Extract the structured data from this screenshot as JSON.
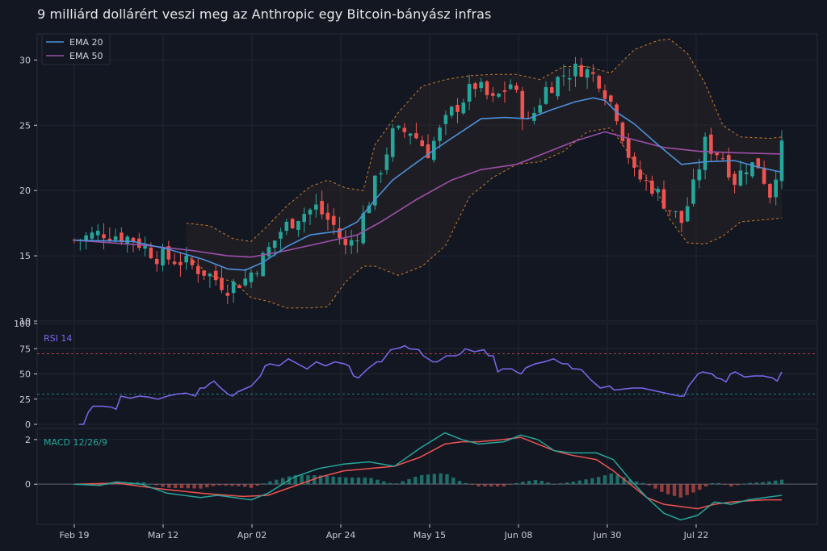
{
  "title": "9 milliárd dollárért veszi meg az Anthropic egy Bitcoin-bányász infras",
  "colors": {
    "background": "#131722",
    "up": "#26a69a",
    "down": "#ef5350",
    "ema20": "#4a90d9",
    "ema50": "#9c4fa8",
    "rsi": "#7b68ee",
    "macd": "#26a69a",
    "signal": "#ef5350",
    "bands": "#c87f2a"
  },
  "chart_data": [
    {
      "type": "candlestick",
      "legend": [
        {
          "key": "ema20",
          "label": "EMA 20"
        },
        {
          "key": "ema50",
          "label": "EMA 50"
        }
      ],
      "legend_position": "top-left",
      "ylim": [
        10,
        32
      ],
      "yticks": [
        10,
        15,
        20,
        25,
        30
      ],
      "grid": true,
      "x_ticks": [
        "Feb 19",
        "Mar 12",
        "Apr 02",
        "Apr 24",
        "May 15",
        "Jun 08",
        "Jun 30",
        "Jul 22"
      ],
      "close_anchors": [
        [
          0,
          16.2
        ],
        [
          5,
          16.8
        ],
        [
          10,
          16.3
        ],
        [
          14,
          15.0
        ],
        [
          18,
          14.6
        ],
        [
          22,
          13.8
        ],
        [
          26,
          12.6
        ],
        [
          29,
          13.2
        ],
        [
          32,
          14.8
        ],
        [
          35,
          16.9
        ],
        [
          38,
          18.1
        ],
        [
          41,
          18.7
        ],
        [
          44,
          17.3
        ],
        [
          46,
          15.6
        ],
        [
          48,
          16.8
        ],
        [
          51,
          20.5
        ],
        [
          54,
          24.3
        ],
        [
          57,
          24.6
        ],
        [
          60,
          23.0
        ],
        [
          64,
          26.0
        ],
        [
          68,
          28.1
        ],
        [
          71,
          26.8
        ],
        [
          74,
          28.2
        ],
        [
          77,
          25.1
        ],
        [
          80,
          27.8
        ],
        [
          83,
          28.9
        ],
        [
          86,
          29.4
        ],
        [
          89,
          28.5
        ],
        [
          92,
          25.9
        ],
        [
          95,
          21.2
        ],
        [
          98,
          20.3
        ],
        [
          101,
          18.6
        ],
        [
          103,
          17.6
        ],
        [
          105,
          20.2
        ],
        [
          107,
          23.6
        ],
        [
          110,
          22.6
        ],
        [
          112,
          20.8
        ],
        [
          114,
          21.9
        ],
        [
          116,
          22.0
        ],
        [
          118,
          19.8
        ],
        [
          120,
          23.2
        ]
      ],
      "ema20": [
        [
          0,
          16.2
        ],
        [
          10,
          16.1
        ],
        [
          16,
          15.5
        ],
        [
          22,
          14.7
        ],
        [
          26,
          14.0
        ],
        [
          29,
          13.9
        ],
        [
          32,
          14.5
        ],
        [
          36,
          15.7
        ],
        [
          40,
          16.6
        ],
        [
          45,
          16.9
        ],
        [
          48,
          17.6
        ],
        [
          51,
          19.3
        ],
        [
          54,
          20.8
        ],
        [
          57,
          21.8
        ],
        [
          61,
          23.1
        ],
        [
          65,
          24.3
        ],
        [
          69,
          25.5
        ],
        [
          73,
          25.6
        ],
        [
          77,
          25.5
        ],
        [
          81,
          26.2
        ],
        [
          85,
          26.8
        ],
        [
          88,
          27.1
        ],
        [
          90,
          26.9
        ],
        [
          92,
          26.0
        ],
        [
          95,
          25.1
        ],
        [
          99,
          23.5
        ],
        [
          103,
          22.0
        ],
        [
          107,
          22.2
        ],
        [
          112,
          22.3
        ],
        [
          116,
          21.8
        ],
        [
          120,
          21.4
        ]
      ],
      "ema50": [
        [
          0,
          16.2
        ],
        [
          12,
          15.8
        ],
        [
          20,
          15.4
        ],
        [
          26,
          15.0
        ],
        [
          30,
          14.9
        ],
        [
          36,
          15.4
        ],
        [
          42,
          16.0
        ],
        [
          48,
          16.6
        ],
        [
          52,
          17.6
        ],
        [
          58,
          19.3
        ],
        [
          64,
          20.8
        ],
        [
          69,
          21.6
        ],
        [
          75,
          22.0
        ],
        [
          80,
          22.9
        ],
        [
          85,
          23.8
        ],
        [
          90,
          24.5
        ],
        [
          94,
          24.0
        ],
        [
          100,
          23.3
        ],
        [
          106,
          23.0
        ],
        [
          112,
          22.9
        ],
        [
          120,
          22.8
        ]
      ],
      "bb_upper": [
        [
          19,
          17.5
        ],
        [
          23,
          17.3
        ],
        [
          27,
          16.3
        ],
        [
          30,
          16.1
        ],
        [
          33,
          17.4
        ],
        [
          36,
          18.8
        ],
        [
          40,
          20.3
        ],
        [
          43,
          20.8
        ],
        [
          46,
          20.2
        ],
        [
          49,
          20.0
        ],
        [
          51,
          23.5
        ],
        [
          55,
          26.0
        ],
        [
          59,
          28.0
        ],
        [
          63,
          28.5
        ],
        [
          67,
          28.8
        ],
        [
          71,
          28.9
        ],
        [
          75,
          28.9
        ],
        [
          79,
          28.5
        ],
        [
          83,
          29.5
        ],
        [
          87,
          29.5
        ],
        [
          91,
          29.0
        ],
        [
          95,
          30.8
        ],
        [
          99,
          31.5
        ],
        [
          101,
          31.6
        ],
        [
          104,
          30.5
        ],
        [
          107,
          28.2
        ],
        [
          110,
          25.0
        ],
        [
          113,
          24.1
        ],
        [
          118,
          24.0
        ],
        [
          120,
          24.1
        ]
      ],
      "bb_lower": [
        [
          19,
          15.1
        ],
        [
          23,
          13.5
        ],
        [
          27,
          13.0
        ],
        [
          30,
          11.8
        ],
        [
          33,
          11.5
        ],
        [
          36,
          11.0
        ],
        [
          40,
          11.0
        ],
        [
          43,
          11.1
        ],
        [
          46,
          13.0
        ],
        [
          49,
          14.2
        ],
        [
          51,
          14.2
        ],
        [
          55,
          13.5
        ],
        [
          59,
          14.2
        ],
        [
          63,
          15.8
        ],
        [
          67,
          19.5
        ],
        [
          71,
          21.0
        ],
        [
          75,
          22.0
        ],
        [
          79,
          22.2
        ],
        [
          83,
          23.0
        ],
        [
          87,
          24.5
        ],
        [
          91,
          24.8
        ],
        [
          95,
          22.2
        ],
        [
          99,
          19.8
        ],
        [
          101,
          17.8
        ],
        [
          104,
          16.0
        ],
        [
          107,
          15.9
        ],
        [
          110,
          16.5
        ],
        [
          113,
          17.6
        ],
        [
          118,
          17.8
        ],
        [
          120,
          17.9
        ]
      ]
    },
    {
      "type": "line",
      "label": "RSI 14",
      "ylim": [
        0,
        100
      ],
      "yticks": [
        0,
        25,
        50,
        75,
        100
      ],
      "overbought": 70,
      "oversold": 30,
      "values": [
        [
          1,
          0
        ],
        [
          2,
          0
        ],
        [
          3,
          12
        ],
        [
          4,
          18
        ],
        [
          6,
          18
        ],
        [
          8,
          17
        ],
        [
          9,
          15
        ],
        [
          10,
          28
        ],
        [
          12,
          26
        ],
        [
          14,
          28
        ],
        [
          16,
          27
        ],
        [
          18,
          25
        ],
        [
          20,
          28
        ],
        [
          22,
          30
        ],
        [
          24,
          31
        ],
        [
          26,
          28
        ],
        [
          27,
          36
        ],
        [
          28,
          36
        ],
        [
          29,
          40
        ],
        [
          30,
          43
        ],
        [
          31,
          38
        ],
        [
          32,
          34
        ],
        [
          33,
          30
        ],
        [
          34,
          28
        ],
        [
          35,
          32
        ],
        [
          36,
          34
        ],
        [
          38,
          38
        ],
        [
          39,
          43
        ],
        [
          40,
          48
        ],
        [
          41,
          58
        ],
        [
          42,
          60
        ],
        [
          44,
          58
        ],
        [
          46,
          65
        ],
        [
          48,
          60
        ],
        [
          50,
          55
        ],
        [
          52,
          62
        ],
        [
          54,
          58
        ],
        [
          56,
          62
        ],
        [
          58,
          60
        ],
        [
          59,
          58
        ],
        [
          60,
          48
        ],
        [
          61,
          46
        ],
        [
          63,
          55
        ],
        [
          65,
          62
        ],
        [
          66,
          62
        ],
        [
          68,
          74
        ],
        [
          70,
          76
        ],
        [
          71,
          78
        ],
        [
          72,
          75
        ],
        [
          74,
          74
        ],
        [
          75,
          68
        ],
        [
          77,
          62
        ],
        [
          78,
          62
        ],
        [
          80,
          68
        ],
        [
          82,
          68
        ],
        [
          83,
          70
        ],
        [
          84,
          75
        ],
        [
          86,
          72
        ],
        [
          88,
          74
        ],
        [
          89,
          68
        ],
        [
          90,
          68
        ],
        [
          91,
          52
        ],
        [
          92,
          55
        ],
        [
          94,
          55
        ],
        [
          95,
          52
        ],
        [
          96,
          50
        ],
        [
          97,
          56
        ],
        [
          99,
          60
        ],
        [
          101,
          62
        ],
        [
          103,
          65
        ],
        [
          104,
          62
        ],
        [
          105,
          60
        ],
        [
          106,
          60
        ],
        [
          107,
          55
        ],
        [
          108,
          55
        ],
        [
          109,
          54
        ],
        [
          111,
          44
        ],
        [
          112,
          40
        ],
        [
          113,
          36
        ],
        [
          115,
          38
        ],
        [
          116,
          34
        ],
        [
          118,
          35
        ],
        [
          120,
          36
        ],
        [
          122,
          36
        ],
        [
          124,
          34
        ],
        [
          126,
          32
        ],
        [
          128,
          30
        ],
        [
          130,
          28
        ],
        [
          131,
          28
        ],
        [
          132,
          38
        ],
        [
          134,
          50
        ],
        [
          135,
          52
        ],
        [
          137,
          50
        ],
        [
          138,
          46
        ],
        [
          139,
          45
        ],
        [
          140,
          42
        ],
        [
          141,
          50
        ],
        [
          142,
          52
        ],
        [
          144,
          47
        ],
        [
          146,
          48
        ],
        [
          148,
          48
        ],
        [
          150,
          46
        ],
        [
          151,
          43
        ],
        [
          152,
          52
        ]
      ]
    },
    {
      "type": "macd",
      "label": "MACD 12/26/9",
      "ylim": [
        -1.8,
        2.5
      ],
      "yticks": [
        0,
        2
      ],
      "macd": [
        [
          0,
          0.0
        ],
        [
          6,
          -0.05
        ],
        [
          10,
          0.1
        ],
        [
          16,
          0.0
        ],
        [
          22,
          -0.4
        ],
        [
          30,
          -0.6
        ],
        [
          34,
          -0.5
        ],
        [
          38,
          -0.6
        ],
        [
          42,
          -0.7
        ],
        [
          46,
          -0.4
        ],
        [
          52,
          0.3
        ],
        [
          58,
          0.7
        ],
        [
          64,
          0.9
        ],
        [
          70,
          1.0
        ],
        [
          76,
          0.8
        ],
        [
          82,
          1.6
        ],
        [
          88,
          2.3
        ],
        [
          92,
          2.0
        ],
        [
          96,
          1.8
        ],
        [
          102,
          1.9
        ],
        [
          106,
          2.2
        ],
        [
          110,
          2.0
        ],
        [
          114,
          1.5
        ],
        [
          118,
          1.4
        ],
        [
          124,
          1.4
        ],
        [
          128,
          1.1
        ],
        [
          132,
          0.2
        ],
        [
          136,
          -0.6
        ],
        [
          140,
          -1.3
        ],
        [
          144,
          -1.6
        ],
        [
          148,
          -1.4
        ],
        [
          152,
          -0.8
        ],
        [
          156,
          -0.9
        ],
        [
          160,
          -0.7
        ],
        [
          164,
          -0.6
        ],
        [
          168,
          -0.5
        ]
      ],
      "signal": [
        [
          0,
          0.0
        ],
        [
          10,
          0.05
        ],
        [
          20,
          -0.2
        ],
        [
          30,
          -0.4
        ],
        [
          40,
          -0.55
        ],
        [
          46,
          -0.5
        ],
        [
          52,
          -0.1
        ],
        [
          58,
          0.3
        ],
        [
          64,
          0.6
        ],
        [
          70,
          0.7
        ],
        [
          76,
          0.8
        ],
        [
          82,
          1.2
        ],
        [
          88,
          1.8
        ],
        [
          92,
          1.9
        ],
        [
          96,
          1.9
        ],
        [
          102,
          2.0
        ],
        [
          106,
          2.1
        ],
        [
          110,
          1.8
        ],
        [
          114,
          1.5
        ],
        [
          118,
          1.3
        ],
        [
          124,
          1.1
        ],
        [
          128,
          0.6
        ],
        [
          132,
          0.0
        ],
        [
          136,
          -0.6
        ],
        [
          140,
          -0.9
        ],
        [
          144,
          -1.0
        ],
        [
          148,
          -1.1
        ],
        [
          152,
          -0.9
        ],
        [
          156,
          -0.8
        ],
        [
          160,
          -0.75
        ],
        [
          164,
          -0.7
        ],
        [
          168,
          -0.7
        ]
      ]
    }
  ]
}
